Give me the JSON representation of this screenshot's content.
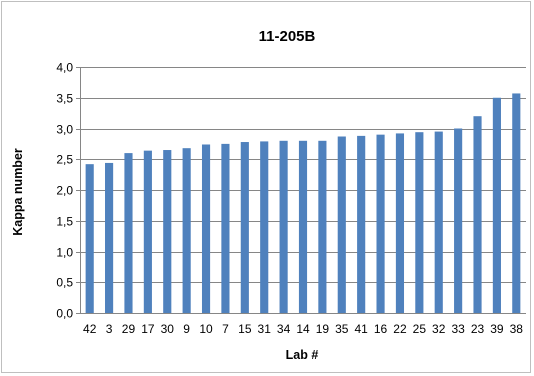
{
  "chart_data": {
    "type": "bar",
    "title": "11-205B",
    "xlabel": "Lab #",
    "ylabel": "Kappa number",
    "categories": [
      "42",
      "3",
      "29",
      "17",
      "30",
      "9",
      "10",
      "7",
      "15",
      "31",
      "34",
      "14",
      "19",
      "35",
      "41",
      "16",
      "22",
      "25",
      "32",
      "33",
      "23",
      "39",
      "38"
    ],
    "values": [
      2.42,
      2.44,
      2.6,
      2.64,
      2.65,
      2.68,
      2.74,
      2.75,
      2.78,
      2.79,
      2.8,
      2.8,
      2.8,
      2.87,
      2.88,
      2.9,
      2.92,
      2.94,
      2.95,
      3.0,
      3.2,
      3.5,
      3.57
    ],
    "ylim": [
      0,
      4.0
    ],
    "yticks": [
      "0,0",
      "0,5",
      "1,0",
      "1,5",
      "2,0",
      "2,5",
      "3,0",
      "3,5",
      "4,0"
    ],
    "grid": true,
    "legend": "none",
    "colors": {
      "bar": "#4f81bd",
      "grid": "#868686",
      "axis": "#868686",
      "border": "#bfbfbf"
    }
  }
}
